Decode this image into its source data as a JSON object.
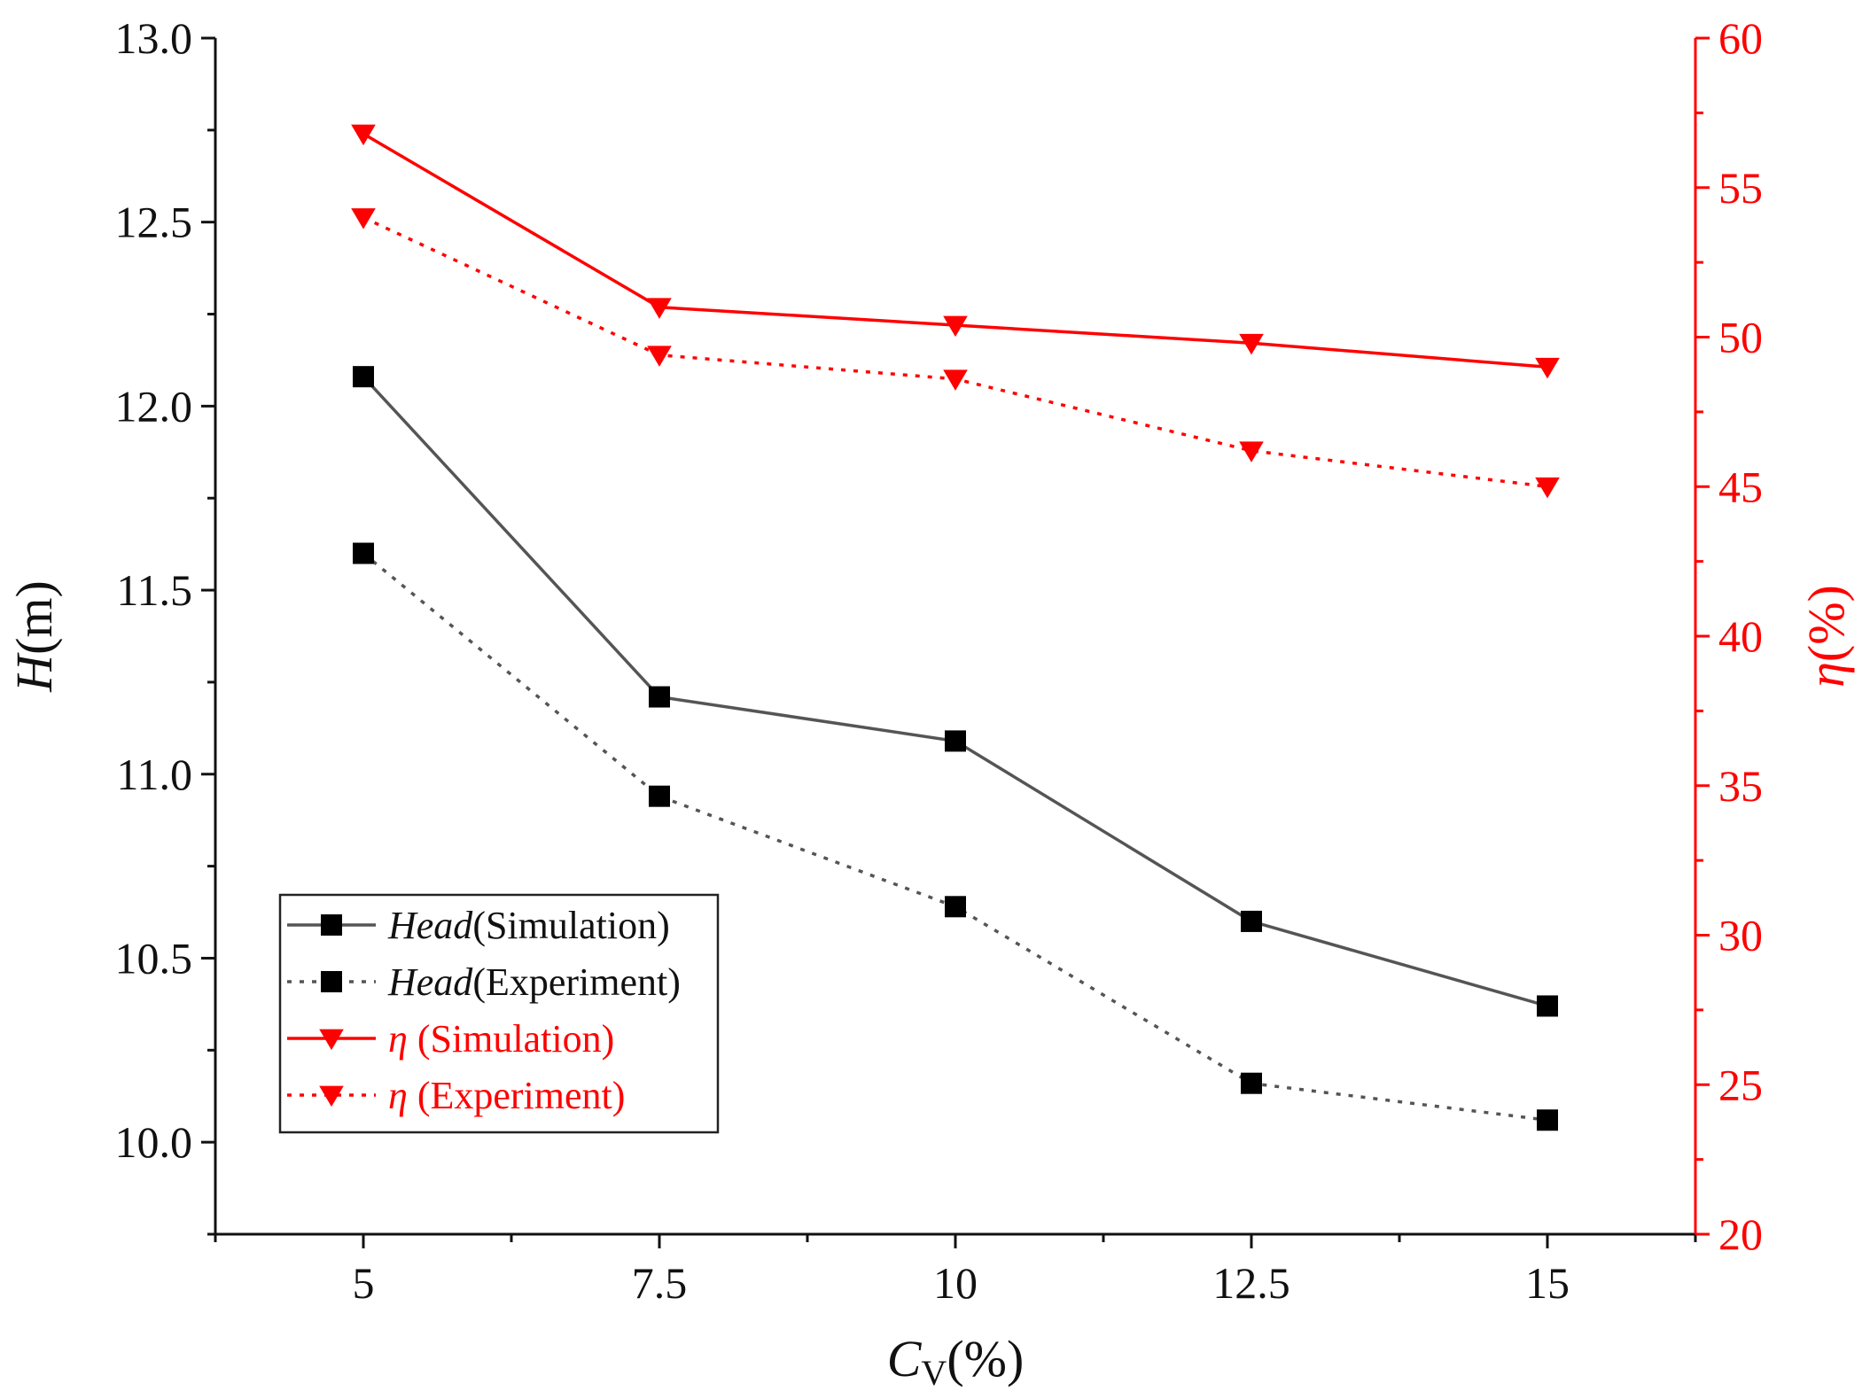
{
  "chart_data": {
    "type": "line",
    "x": [
      5,
      7.5,
      10,
      12.5,
      15
    ],
    "x_ticks": [
      5,
      7.5,
      10,
      12.5,
      15
    ],
    "x_tick_labels": [
      "5",
      "7.5",
      "10",
      "12.5",
      "15"
    ],
    "xlim": [
      3.75,
      16.25
    ],
    "xlabel": {
      "main": "C",
      "sub": "V",
      "suffix": "(%)"
    },
    "left_axis": {
      "label": {
        "italic": "H",
        "rest": "(m)"
      },
      "ylim": [
        9.75,
        13.0
      ],
      "ticks": [
        10.0,
        10.5,
        11.0,
        11.5,
        12.0,
        12.5,
        13.0
      ],
      "tick_labels": [
        "10.0",
        "10.5",
        "11.0",
        "11.5",
        "12.0",
        "12.5",
        "13.0"
      ],
      "color": "#111111"
    },
    "right_axis": {
      "label": {
        "italic": "η",
        "rest": "(%)"
      },
      "ylim": [
        20,
        60
      ],
      "ticks": [
        20,
        25,
        30,
        35,
        40,
        45,
        50,
        55,
        60
      ],
      "tick_labels": [
        "20",
        "25",
        "30",
        "35",
        "40",
        "45",
        "50",
        "55",
        "60"
      ],
      "color": "#ff0000"
    },
    "series": [
      {
        "name": "Head(Simulation)",
        "legend_italic": "Head",
        "legend_rest": "(Simulation)",
        "axis": "left",
        "values": [
          12.08,
          11.21,
          11.09,
          10.6,
          10.37
        ],
        "color": "#555555",
        "marker_color": "#000000",
        "marker": "square",
        "dash": "solid"
      },
      {
        "name": "Head(Experiment)",
        "legend_italic": "Head",
        "legend_rest": "(Experiment)",
        "axis": "left",
        "values": [
          11.6,
          10.94,
          10.64,
          10.16,
          10.06
        ],
        "color": "#555555",
        "marker_color": "#000000",
        "marker": "square",
        "dash": "dotted"
      },
      {
        "name": "η (Simulation)",
        "legend_italic": "η",
        "legend_rest": " (Simulation)",
        "axis": "right",
        "values": [
          56.8,
          51.0,
          50.4,
          49.8,
          49.0
        ],
        "color": "#ff0000",
        "marker_color": "#ff0000",
        "marker": "triangle-down",
        "dash": "solid"
      },
      {
        "name": "η (Experiment)",
        "legend_italic": "η",
        "legend_rest": " (Experiment)",
        "axis": "right",
        "values": [
          54.0,
          49.4,
          48.6,
          46.2,
          45.0
        ],
        "color": "#ff0000",
        "marker_color": "#ff0000",
        "marker": "triangle-down",
        "dash": "dotted"
      }
    ],
    "legend_position": "lower-left"
  }
}
